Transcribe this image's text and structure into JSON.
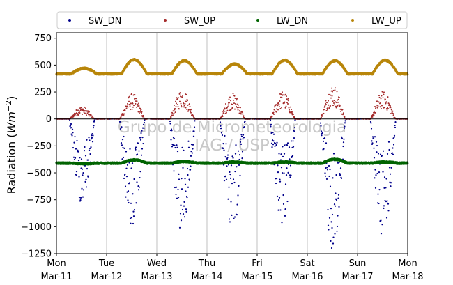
{
  "chart_data": {
    "type": "scatter",
    "title": "",
    "xlabel": "",
    "ylabel": "Radiation",
    "ylabel_unit_base": "Wm",
    "ylabel_unit_exp": "−2",
    "ylim": [
      -1250,
      800
    ],
    "yticks": [
      -1250,
      -1000,
      -750,
      -500,
      -250,
      0,
      250,
      500,
      750
    ],
    "ytick_labels": [
      "−1250",
      "−1000",
      "−750",
      "−500",
      "−250",
      "0",
      "250",
      "500",
      "750"
    ],
    "xlim": [
      "2024-03-11",
      "2024-03-18"
    ],
    "xticks": [
      {
        "date": "2024-03-11",
        "day": "Mon",
        "label": "Mar-11"
      },
      {
        "date": "2024-03-12",
        "day": "Tue",
        "label": "Mar-12"
      },
      {
        "date": "2024-03-13",
        "day": "Wed",
        "label": "Mar-13"
      },
      {
        "date": "2024-03-14",
        "day": "Thu",
        "label": "Mar-14"
      },
      {
        "date": "2024-03-15",
        "day": "Fri",
        "label": "Mar-15"
      },
      {
        "date": "2024-03-16",
        "day": "Sat",
        "label": "Mar-16"
      },
      {
        "date": "2024-03-17",
        "day": "Sun",
        "label": "Mar-17"
      },
      {
        "date": "2024-03-18",
        "day": "Mon",
        "label": "Mar-18"
      }
    ],
    "grid": "vertical",
    "zero_line": true,
    "legend_position": "top",
    "watermark": [
      "Grupo de Micrometeorologia",
      "IAG / USP"
    ],
    "series": [
      {
        "name": "SW_DN",
        "color": "#00008b",
        "daily_extreme": [
          -800,
          -1050,
          -1060,
          -1040,
          -1000,
          -1230,
          -1100
        ]
      },
      {
        "name": "SW_UP",
        "color": "#a52a2a",
        "daily_peak": [
          120,
          240,
          280,
          240,
          260,
          320,
          260
        ]
      },
      {
        "name": "LW_DN",
        "color": "#006400",
        "baseline": -410,
        "daily_peak": [
          -415,
          -380,
          -395,
          -400,
          -400,
          -375,
          -400
        ]
      },
      {
        "name": "LW_UP",
        "color": "#b8860b",
        "baseline": 420,
        "daily_peak": [
          470,
          550,
          540,
          510,
          545,
          540,
          545
        ]
      }
    ]
  }
}
